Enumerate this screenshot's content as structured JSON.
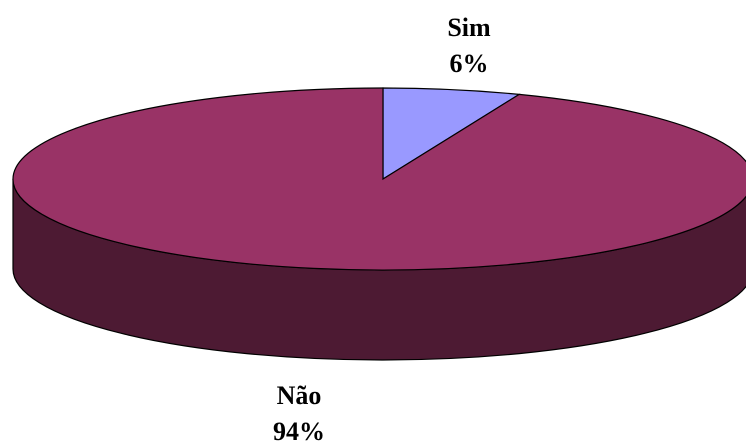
{
  "chart_data": {
    "type": "pie",
    "style": "3d",
    "title": "",
    "slices": [
      {
        "label": "Sim",
        "value": 6,
        "percent_label": "6%",
        "color": "#9999ff"
      },
      {
        "label": "Não",
        "value": 94,
        "percent_label": "94%",
        "color": "#993366"
      }
    ],
    "side_color": "#4d1a33",
    "outline_color": "#000000"
  }
}
